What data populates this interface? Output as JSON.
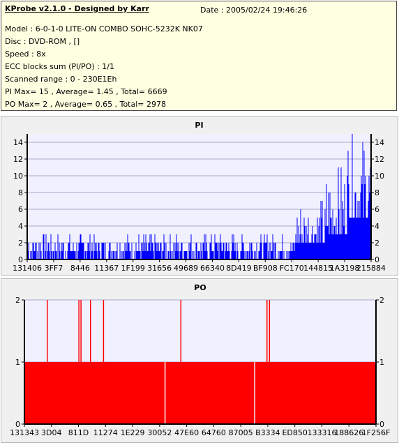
{
  "header": {
    "title": "KProbe v2.1.0 - Designed by Karr",
    "date": "Date : 2005/02/24 19:46:26",
    "lines": [
      "Model : 6-0-1-0 LITE-ON COMBO SOHC-5232K NK07",
      "Disc : DVD-ROM ,  []",
      "Speed : 8x",
      "ECC blocks sum (PI/PO) : 1/1",
      "Scanned range : 0 - 230E1Eh",
      "PI Max= 15 , Average= 1.45 , Total= 6669",
      "PO Max= 2 , Average= 0.65 , Total= 2978"
    ]
  },
  "chart_data": [
    {
      "type": "bar",
      "title": "PI",
      "color": "#0000ff",
      "ylim": [
        0,
        15
      ],
      "yticks": [
        0,
        2,
        4,
        6,
        8,
        10,
        12,
        14
      ],
      "xticks": [
        "131406",
        "3FF7",
        "8446",
        "11367",
        "1F199",
        "31656",
        "49689",
        "66340",
        "8D419",
        "BF908",
        "FC170",
        "144815",
        "1A3198",
        "215884"
      ],
      "grid": true,
      "profile": {
        "segments": [
          {
            "from": 0.0,
            "to": 0.78,
            "baseline": 1,
            "max": 3
          },
          {
            "from": 0.78,
            "to": 0.87,
            "baseline": 2,
            "max": 7
          },
          {
            "from": 0.87,
            "to": 0.93,
            "baseline": 3,
            "max": 11
          },
          {
            "from": 0.93,
            "to": 1.0,
            "baseline": 5,
            "max": 15
          }
        ]
      }
    },
    {
      "type": "bar",
      "title": "PO",
      "color": "#ff0000",
      "ylim": [
        0,
        2
      ],
      "yticks": [
        0,
        1,
        2
      ],
      "xticks": [
        "131343",
        "3D04",
        "811D",
        "11274",
        "1E229",
        "30052",
        "47E60",
        "64760",
        "87005",
        "B3334",
        "ED850",
        "133316",
        "188626",
        "1F256F"
      ],
      "grid": true,
      "baseline": 1,
      "spikes_at_2": [
        0.065,
        0.155,
        0.161,
        0.188,
        0.225,
        0.445,
        0.69,
        0.697
      ],
      "gaps_at_0": [
        0.4,
        0.655
      ]
    }
  ]
}
